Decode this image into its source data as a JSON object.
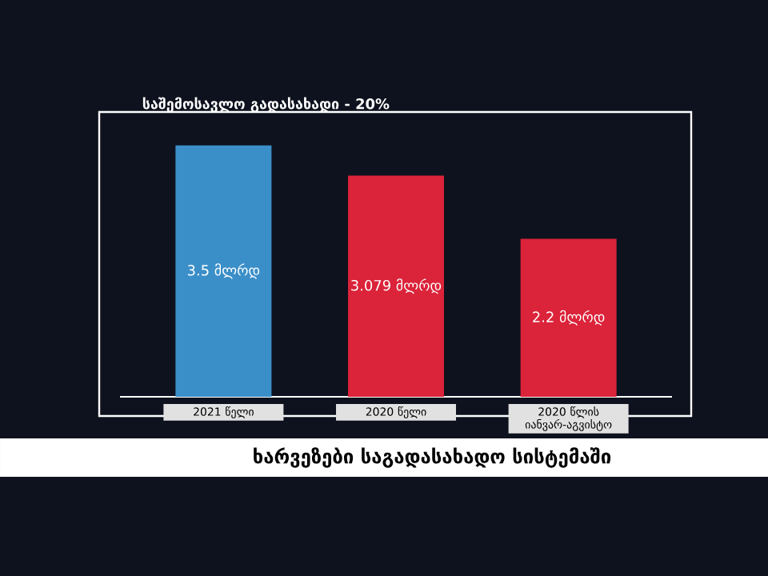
{
  "chart_data": {
    "type": "bar",
    "title": "საშემოსავლო გადასახადი - 20%",
    "categories": [
      "2021 წელი",
      "2020 წელი",
      "2020 წლის იანვარ-აგვისტო"
    ],
    "values": [
      3.5,
      3.079,
      2.2
    ],
    "value_labels": [
      "3.5 მლრდ",
      "3.079 მლრდ",
      "2.2 მლრდ"
    ],
    "colors": [
      "#3b8fc9",
      "#db2339",
      "#db2339"
    ],
    "annotations": [
      "ხარვეზები საგადასახადო სისტემაში"
    ]
  }
}
